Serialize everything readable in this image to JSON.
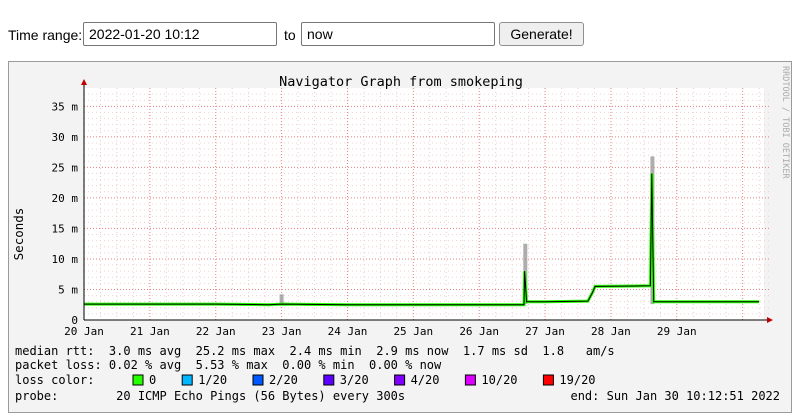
{
  "controls": {
    "time_range_label": "Time range:",
    "start_value": "2022-01-20 10:12",
    "to_label": "to",
    "end_value": "now",
    "generate_label": "Generate!"
  },
  "graph": {
    "watermark": "RRDTOOL / TOBI OETIKER",
    "stats": {
      "median_rtt": "median rtt:  3.0 ms avg  25.2 ms max  2.4 ms min  2.9 ms now  1.7 ms sd  1.8   am/s",
      "packet_loss": "packet loss: 0.02 % avg  5.53 % max  0.00 % min  0.00 % now",
      "loss_color_label": "loss color:",
      "probe": "probe:        20 ICMP Echo Pings (56 Bytes) every 300s",
      "end": "end: Sun Jan 30 10:12:51 2022"
    },
    "loss_legend": [
      {
        "label": "0",
        "color": "#26ff00"
      },
      {
        "label": "1/20",
        "color": "#00b8ff"
      },
      {
        "label": "2/20",
        "color": "#0059ff"
      },
      {
        "label": "3/20",
        "color": "#5e00ff"
      },
      {
        "label": "4/20",
        "color": "#7e00ff"
      },
      {
        "label": "10/20",
        "color": "#dd00ff"
      },
      {
        "label": "19/20",
        "color": "#ff0000"
      }
    ]
  },
  "chart_data": {
    "type": "line",
    "title": "Navigator Graph from smokeping",
    "xlabel": "",
    "ylabel": "Seconds",
    "x_ticks": [
      "20 Jan",
      "21 Jan",
      "22 Jan",
      "23 Jan",
      "24 Jan",
      "25 Jan",
      "26 Jan",
      "27 Jan",
      "28 Jan",
      "29 Jan"
    ],
    "y_ticks": [
      "0",
      "5 m",
      "10 m",
      "15 m",
      "20 m",
      "25 m",
      "30 m",
      "35 m"
    ],
    "xlim_days": [
      20.0,
      30.4
    ],
    "ylim_ms": [
      0,
      38
    ],
    "grid": true,
    "median_rtt_ms": [
      {
        "x": 20.0,
        "y": 2.6
      },
      {
        "x": 21.0,
        "y": 2.6
      },
      {
        "x": 22.0,
        "y": 2.6
      },
      {
        "x": 22.8,
        "y": 2.5
      },
      {
        "x": 23.0,
        "y": 2.6
      },
      {
        "x": 24.0,
        "y": 2.5
      },
      {
        "x": 25.0,
        "y": 2.5
      },
      {
        "x": 26.0,
        "y": 2.5
      },
      {
        "x": 26.68,
        "y": 2.5
      },
      {
        "x": 26.69,
        "y": 8.0
      },
      {
        "x": 26.72,
        "y": 3.0
      },
      {
        "x": 27.0,
        "y": 3.0
      },
      {
        "x": 27.65,
        "y": 3.1
      },
      {
        "x": 27.72,
        "y": 4.5
      },
      {
        "x": 27.76,
        "y": 5.5
      },
      {
        "x": 28.6,
        "y": 5.6
      },
      {
        "x": 28.62,
        "y": 24.0
      },
      {
        "x": 28.65,
        "y": 3.0
      },
      {
        "x": 29.0,
        "y": 3.0
      },
      {
        "x": 30.0,
        "y": 3.0
      },
      {
        "x": 30.25,
        "y": 3.0
      }
    ],
    "spikes": [
      {
        "x": 23.0,
        "max_ms": 4.2
      },
      {
        "x": 26.7,
        "max_ms": 12.5
      },
      {
        "x": 28.63,
        "max_ms": 26.8
      }
    ]
  }
}
